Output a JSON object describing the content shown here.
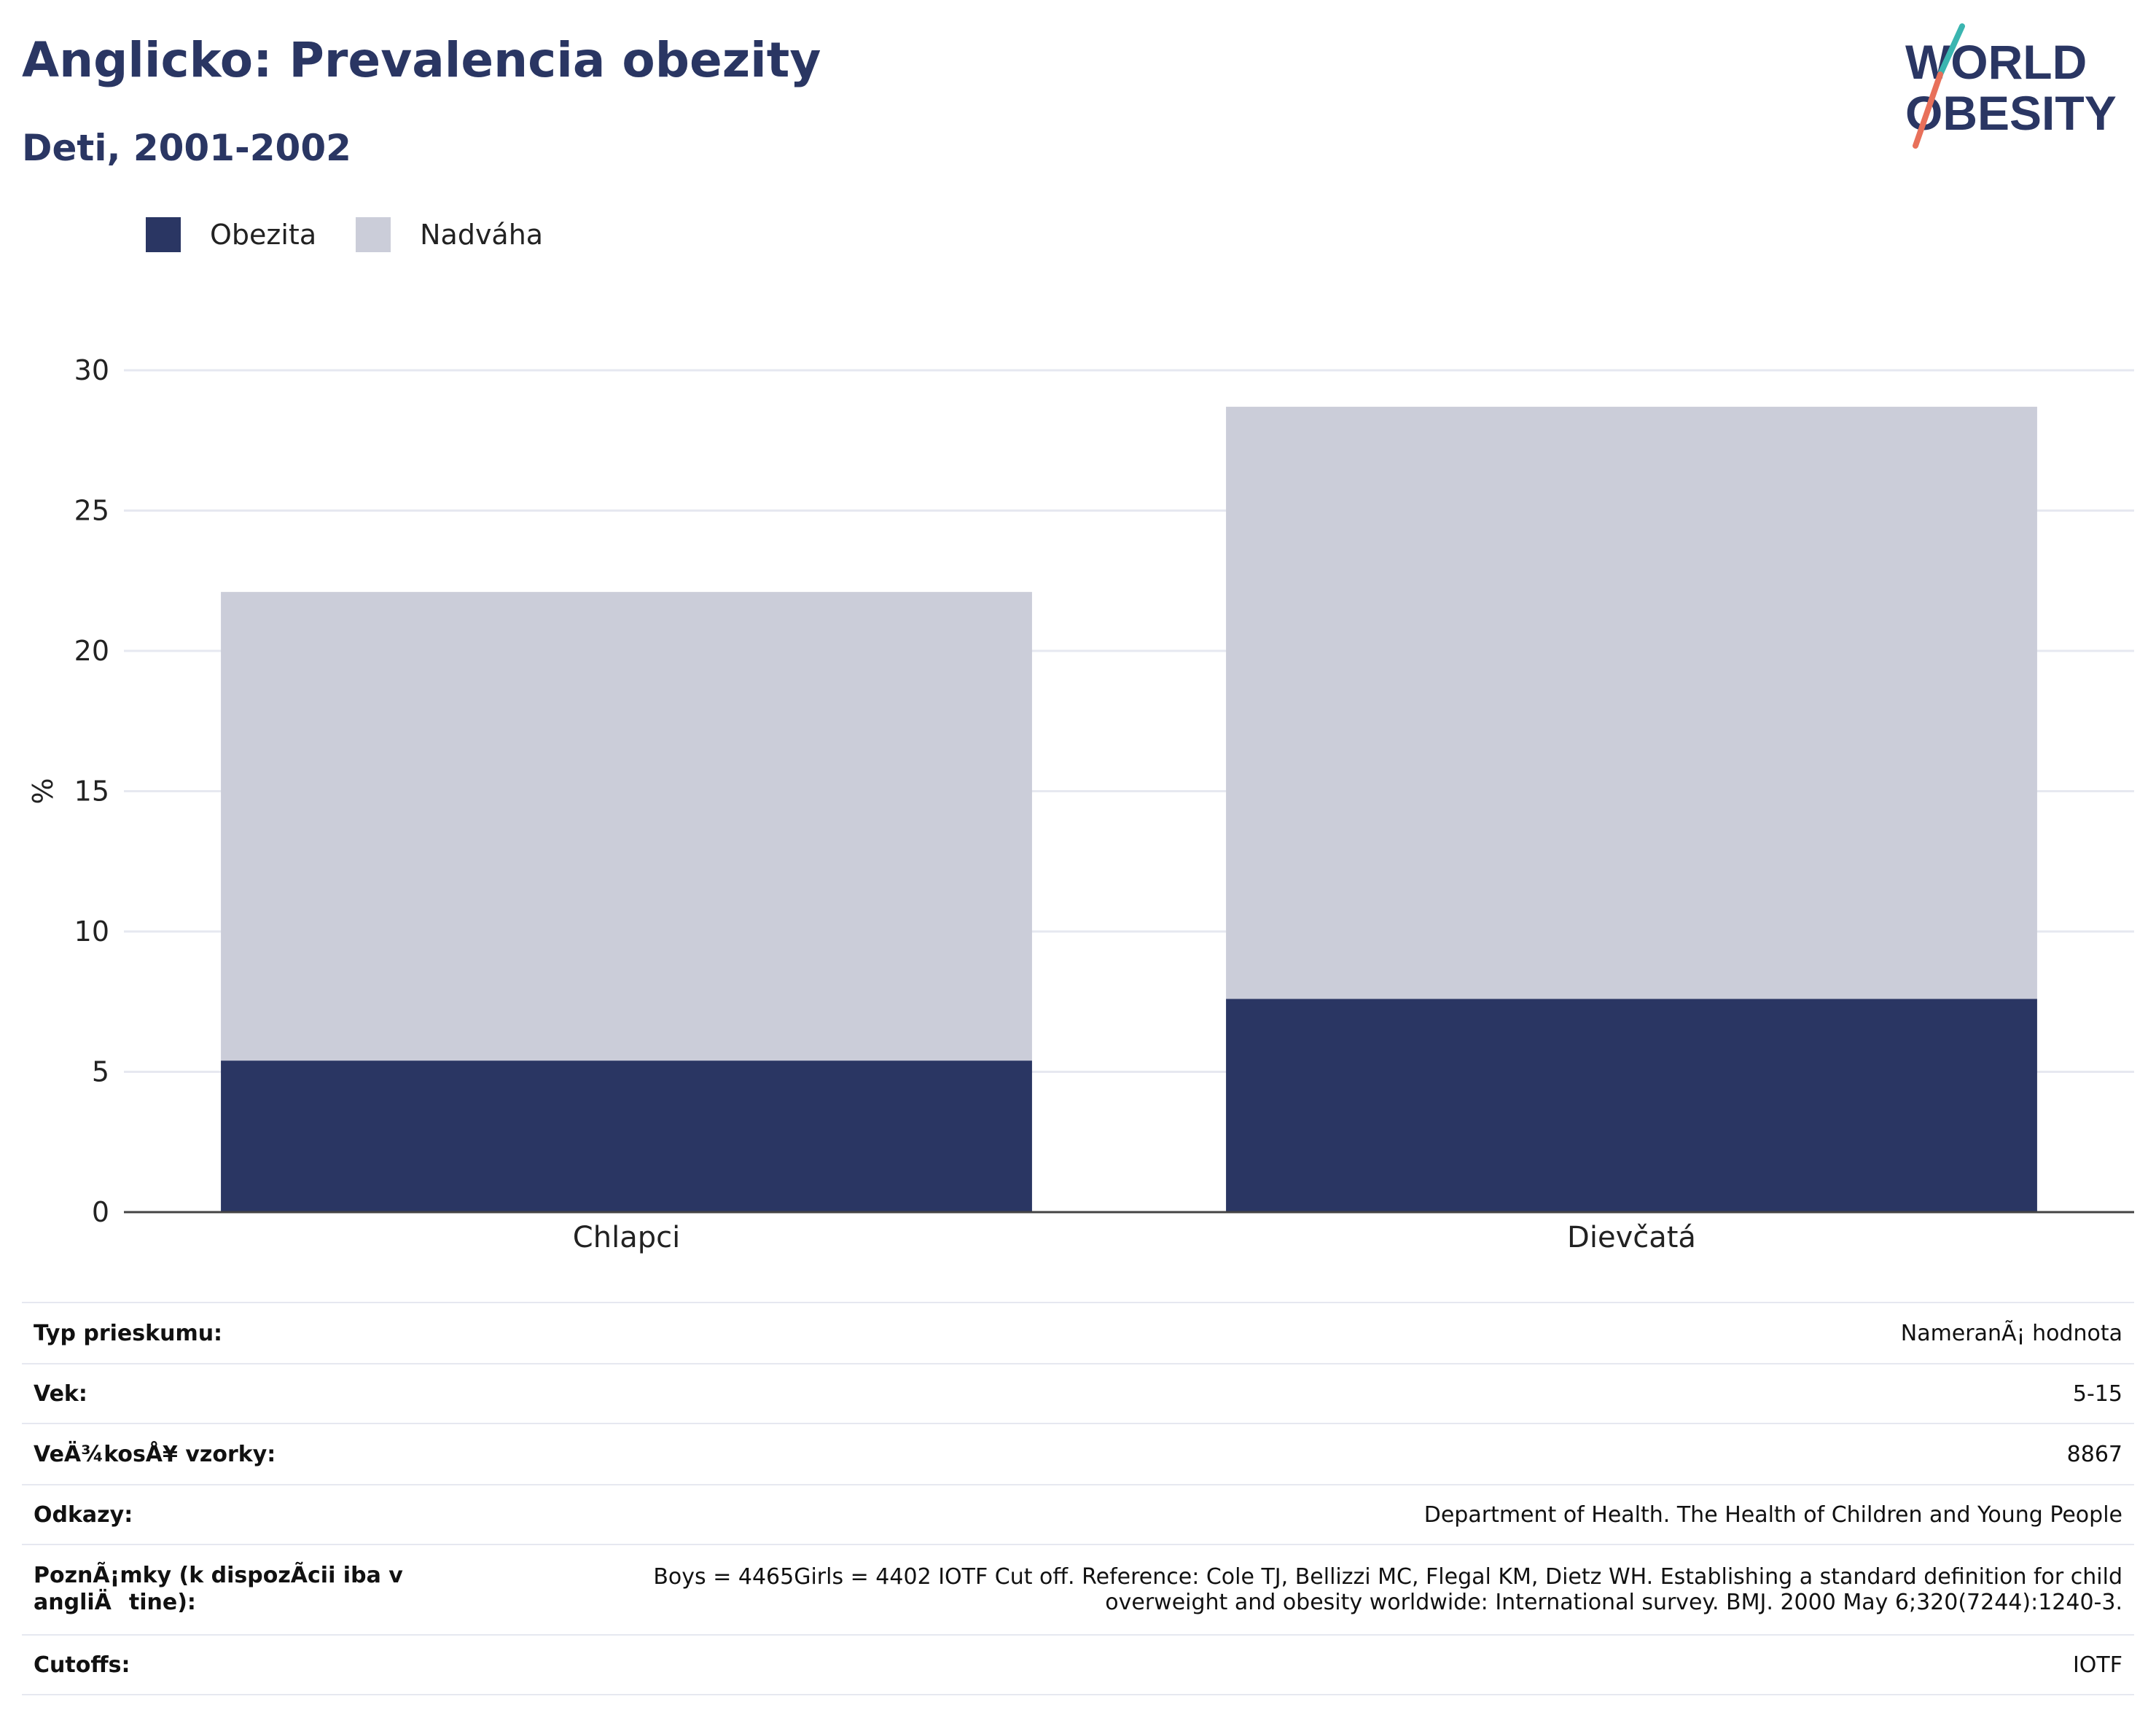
{
  "header": {
    "title": "Anglicko: Prevalencia obezity",
    "subtitle": "Deti, 2001-2002"
  },
  "logo": {
    "line1": "WORLD",
    "line2": "OBESITY"
  },
  "colors": {
    "obesity": "#2a3663",
    "overweight": "#cbcdd9",
    "text": "#2a3663",
    "grid": "#e6e8f0",
    "logo_teal": "#3ab5b0",
    "logo_coral": "#e8705a"
  },
  "chart_data": {
    "type": "bar",
    "stacked": true,
    "categories": [
      "Chlapci",
      "Dievčatá"
    ],
    "series": [
      {
        "name": "Obezita",
        "values": [
          5.4,
          7.6
        ]
      },
      {
        "name": "Nadváha",
        "values": [
          16.7,
          21.1
        ]
      }
    ],
    "ylabel": "%",
    "ylim": [
      0,
      30
    ],
    "yticks": [
      0,
      5,
      10,
      15,
      20,
      25,
      30
    ],
    "grid": true,
    "legend_position": "top-left"
  },
  "meta": [
    {
      "key": "Typ prieskumu:",
      "value": "NameranÃ¡ hodnota"
    },
    {
      "key": "Vek:",
      "value": "5-15"
    },
    {
      "key": "VeÄ¾kosÅ¥ vzorky:",
      "value": "8867"
    },
    {
      "key": "Odkazy:",
      "value": "Department of Health. The Health of Children and Young People"
    },
    {
      "key": "PoznÃ¡mky (k dispozÃ­cii iba v angliÄtine):",
      "value": "Boys = 4465Girls = 4402 IOTF Cut off. Reference: Cole TJ, Bellizzi MC, Flegal KM, Dietz WH. Establishing a standard definition for child overweight and obesity worldwide: International survey. BMJ. 2000 May 6;320(7244):1240-3."
    },
    {
      "key": "Cutoffs:",
      "value": "IOTF"
    }
  ]
}
